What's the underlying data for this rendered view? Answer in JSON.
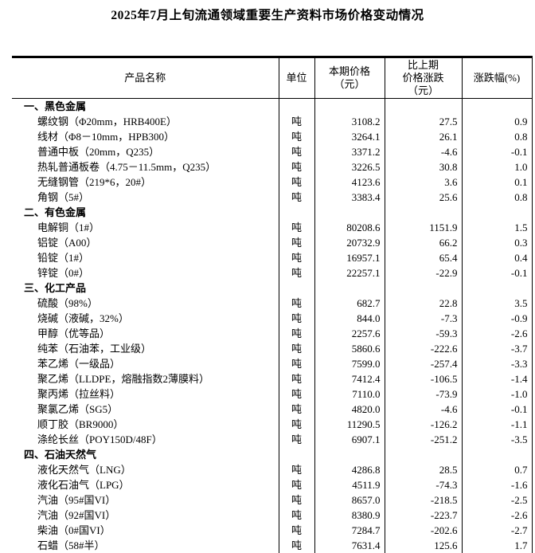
{
  "page": {
    "title": "2025年7月上旬流通领域重要生产资料市场价格变动情况"
  },
  "table": {
    "headers": {
      "product": "产品名称",
      "unit": "单位",
      "current_price": "本期价格\n（元）",
      "change_vs_last": "比上期\n价格涨跌\n（元）",
      "change_pct": "涨跌幅(%)"
    },
    "sections": [
      {
        "name": "一、黑色金属",
        "rows": [
          {
            "product": "螺纹钢（Φ20mm，HRB400E）",
            "unit": "吨",
            "price": "3108.2",
            "change": "27.5",
            "pct": "0.9"
          },
          {
            "product": "线材（Φ8－10mm，HPB300）",
            "unit": "吨",
            "price": "3264.1",
            "change": "26.1",
            "pct": "0.8"
          },
          {
            "product": "普通中板（20mm，Q235）",
            "unit": "吨",
            "price": "3371.2",
            "change": "-4.6",
            "pct": "-0.1"
          },
          {
            "product": "热轧普通板卷（4.75－11.5mm，Q235）",
            "unit": "吨",
            "price": "3226.5",
            "change": "30.8",
            "pct": "1.0"
          },
          {
            "product": "无缝钢管（219*6，20#）",
            "unit": "吨",
            "price": "4123.6",
            "change": "3.6",
            "pct": "0.1"
          },
          {
            "product": "角钢（5#）",
            "unit": "吨",
            "price": "3383.4",
            "change": "25.6",
            "pct": "0.8"
          }
        ]
      },
      {
        "name": "二、有色金属",
        "rows": [
          {
            "product": "电解铜（1#）",
            "unit": "吨",
            "price": "80208.6",
            "change": "1151.9",
            "pct": "1.5"
          },
          {
            "product": "铝锭（A00）",
            "unit": "吨",
            "price": "20732.9",
            "change": "66.2",
            "pct": "0.3"
          },
          {
            "product": "铅锭（1#）",
            "unit": "吨",
            "price": "16957.1",
            "change": "65.4",
            "pct": "0.4"
          },
          {
            "product": "锌锭（0#）",
            "unit": "吨",
            "price": "22257.1",
            "change": "-22.9",
            "pct": "-0.1"
          }
        ]
      },
      {
        "name": "三、化工产品",
        "rows": [
          {
            "product": "硫酸（98%）",
            "unit": "吨",
            "price": "682.7",
            "change": "22.8",
            "pct": "3.5"
          },
          {
            "product": "烧碱（液碱，32%）",
            "unit": "吨",
            "price": "844.0",
            "change": "-7.3",
            "pct": "-0.9"
          },
          {
            "product": "甲醇（优等品）",
            "unit": "吨",
            "price": "2257.6",
            "change": "-59.3",
            "pct": "-2.6"
          },
          {
            "product": "纯苯（石油苯，工业级）",
            "unit": "吨",
            "price": "5860.6",
            "change": "-222.6",
            "pct": "-3.7"
          },
          {
            "product": "苯乙烯（一级品）",
            "unit": "吨",
            "price": "7599.0",
            "change": "-257.4",
            "pct": "-3.3"
          },
          {
            "product": "聚乙烯（LLDPE，熔融指数2薄膜料）",
            "unit": "吨",
            "price": "7412.4",
            "change": "-106.5",
            "pct": "-1.4"
          },
          {
            "product": "聚丙烯（拉丝料）",
            "unit": "吨",
            "price": "7110.0",
            "change": "-73.9",
            "pct": "-1.0"
          },
          {
            "product": "聚氯乙烯（SG5）",
            "unit": "吨",
            "price": "4820.0",
            "change": "-4.6",
            "pct": "-0.1"
          },
          {
            "product": "顺丁胶（BR9000）",
            "unit": "吨",
            "price": "11290.5",
            "change": "-126.2",
            "pct": "-1.1"
          },
          {
            "product": "涤纶长丝（POY150D/48F）",
            "unit": "吨",
            "price": "6907.1",
            "change": "-251.2",
            "pct": "-3.5"
          }
        ]
      },
      {
        "name": "四、石油天然气",
        "rows": [
          {
            "product": "液化天然气（LNG）",
            "unit": "吨",
            "price": "4286.8",
            "change": "28.5",
            "pct": "0.7"
          },
          {
            "product": "液化石油气（LPG）",
            "unit": "吨",
            "price": "4511.9",
            "change": "-74.3",
            "pct": "-1.6"
          },
          {
            "product": "汽油（95#国VI）",
            "unit": "吨",
            "price": "8657.0",
            "change": "-218.5",
            "pct": "-2.5"
          },
          {
            "product": "汽油（92#国VI）",
            "unit": "吨",
            "price": "8380.9",
            "change": "-223.7",
            "pct": "-2.6"
          },
          {
            "product": "柴油（0#国VI）",
            "unit": "吨",
            "price": "7284.7",
            "change": "-202.6",
            "pct": "-2.7"
          },
          {
            "product": "石蜡（58#半）",
            "unit": "吨",
            "price": "7631.4",
            "change": "125.6",
            "pct": "1.7"
          }
        ]
      }
    ]
  }
}
